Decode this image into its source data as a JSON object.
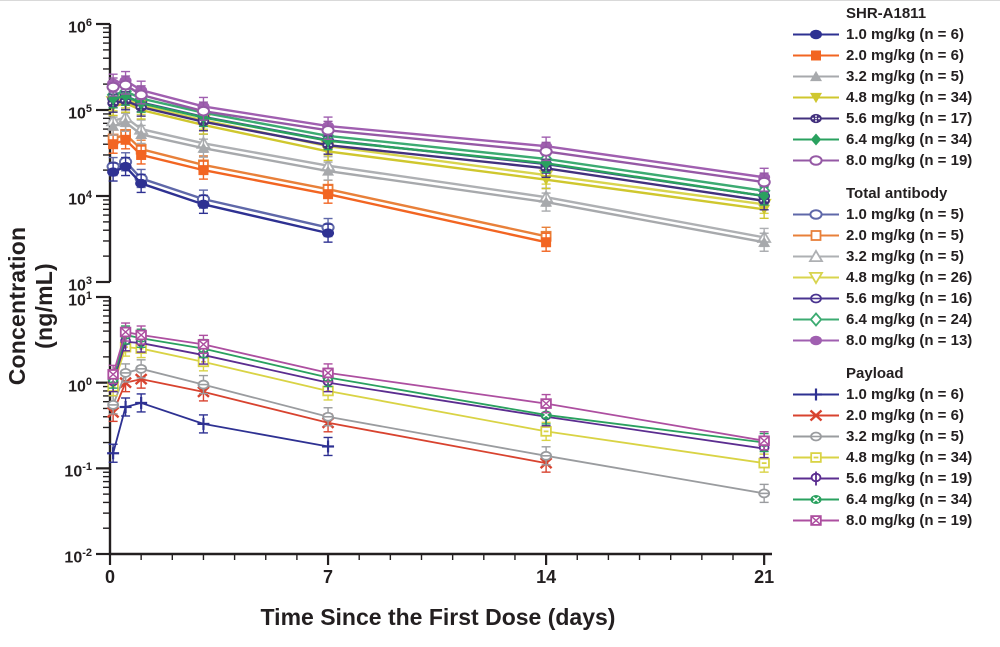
{
  "figure": {
    "y_axis_label": "Concentration (ng/mL)",
    "x_axis_label": "Time Since the First Dose (days)",
    "axis_color": "#231f20",
    "background": "#ffffff"
  },
  "legend": {
    "groups": [
      {
        "title": "SHR-A1811",
        "items": [
          {
            "label": "1.0 mg/kg (n = 6)",
            "color": "#2e3192",
            "marker": "ellipse-filled"
          },
          {
            "label": "2.0 mg/kg (n = 6)",
            "color": "#f26522",
            "marker": "square-filled"
          },
          {
            "label": "3.2 mg/kg (n = 5)",
            "color": "#a7a9ac",
            "marker": "tri-up-filled"
          },
          {
            "label": "4.8 mg/kg (n = 34)",
            "color": "#cfc72e",
            "marker": "tri-down-filled"
          },
          {
            "label": "5.6 mg/kg (n = 17)",
            "color": "#43317e",
            "marker": "circle-dots"
          },
          {
            "label": "6.4 mg/kg (n = 34)",
            "color": "#2aa15f",
            "marker": "diamond-filled"
          },
          {
            "label": "8.0 mg/kg (n = 19)",
            "color": "#9559a5",
            "marker": "ellipse-open"
          }
        ]
      },
      {
        "title": "Total antibody",
        "items": [
          {
            "label": "1.0 mg/kg (n = 5)",
            "color": "#5f68a9",
            "marker": "ellipse-open"
          },
          {
            "label": "2.0 mg/kg (n = 5)",
            "color": "#e8803a",
            "marker": "square-open"
          },
          {
            "label": "3.2 mg/kg (n = 5)",
            "color": "#aeb0b3",
            "marker": "tri-up-open"
          },
          {
            "label": "4.8 mg/kg (n = 26)",
            "color": "#d8d44e",
            "marker": "tri-down-open"
          },
          {
            "label": "5.6 mg/kg (n = 16)",
            "color": "#4a3490",
            "marker": "circle-hbar"
          },
          {
            "label": "6.4 mg/kg (n = 24)",
            "color": "#3cab72",
            "marker": "diamond-open"
          },
          {
            "label": "8.0 mg/kg (n = 13)",
            "color": "#a05fb0",
            "marker": "ellipse-filled"
          }
        ]
      },
      {
        "title": "Payload",
        "items": [
          {
            "label": "1.0 mg/kg (n = 6)",
            "color": "#2e3192",
            "marker": "plus"
          },
          {
            "label": "2.0 mg/kg (n = 6)",
            "color": "#d8432f",
            "marker": "x-mark"
          },
          {
            "label": "3.2 mg/kg (n = 5)",
            "color": "#9a9c9f",
            "marker": "circle-hbar"
          },
          {
            "label": "4.8 mg/kg (n = 34)",
            "color": "#d9d345",
            "marker": "square-hbar"
          },
          {
            "label": "5.6 mg/kg (n = 19)",
            "color": "#5b2d90",
            "marker": "circle-vline"
          },
          {
            "label": "6.4 mg/kg (n = 34)",
            "color": "#2aa15f",
            "marker": "circle-x-filled"
          },
          {
            "label": "8.0 mg/kg (n = 19)",
            "color": "#ad4fa0",
            "marker": "square-x"
          }
        ]
      }
    ]
  },
  "chart_data": [
    {
      "type": "line",
      "panel": "top",
      "title": "",
      "xlabel": "Time Since the First Dose (days)",
      "ylabel": "Concentration (ng/mL)",
      "x_units": "days",
      "y_scale": "log10",
      "ylim": [
        1000,
        1000000
      ],
      "y_tick_exponents": [
        6,
        5,
        4,
        3
      ],
      "xlim": [
        0,
        21
      ],
      "x_ticks": [
        0,
        7,
        14,
        21
      ],
      "grid": false,
      "legend_position": "right",
      "x": [
        0.1,
        0.5,
        1,
        3,
        7,
        14,
        21
      ],
      "series": [
        {
          "name": "Total antibody 1.0 mg/kg (n = 5)",
          "group": "Total antibody",
          "color": "#5f68a9",
          "marker": "ellipse-open",
          "values": [
            22000,
            25000,
            16000,
            9200,
            4300,
            null,
            null
          ]
        },
        {
          "name": "Total antibody 2.0 mg/kg (n = 5)",
          "group": "Total antibody",
          "color": "#e8803a",
          "marker": "square-open",
          "values": [
            46000,
            52000,
            35000,
            23000,
            12000,
            3400,
            null
          ]
        },
        {
          "name": "Total antibody 3.2 mg/kg (n = 5)",
          "group": "Total antibody",
          "color": "#aeb0b3",
          "marker": "tri-up-open",
          "values": [
            75000,
            82000,
            60000,
            41000,
            22500,
            9700,
            3300
          ]
        },
        {
          "name": "Total antibody 4.8 mg/kg (n = 26)",
          "group": "Total antibody",
          "color": "#d8d44e",
          "marker": "tri-down-open",
          "values": [
            125000,
            135000,
            113000,
            76000,
            38000,
            17500,
            8000
          ]
        },
        {
          "name": "Total antibody 5.6 mg/kg (n = 16)",
          "group": "Total antibody",
          "color": "#4a3490",
          "marker": "circle-hbar",
          "values": [
            135000,
            145000,
            122000,
            83000,
            44500,
            23500,
            10000
          ]
        },
        {
          "name": "Total antibody 6.4 mg/kg (n = 24)",
          "group": "Total antibody",
          "color": "#3cab72",
          "marker": "diamond-open",
          "values": [
            150000,
            165000,
            136000,
            93000,
            50000,
            27000,
            11500
          ]
        },
        {
          "name": "Total antibody 8.0 mg/kg (n = 13)",
          "group": "Total antibody",
          "color": "#a05fb0",
          "marker": "ellipse-filled",
          "values": [
            205000,
            220000,
            170000,
            110000,
            65000,
            38000,
            16500
          ]
        },
        {
          "name": "SHR-A1811 1.0 mg/kg (n = 6)",
          "group": "SHR-A1811",
          "color": "#2e3192",
          "marker": "ellipse-filled",
          "values": [
            19000,
            22000,
            14000,
            8000,
            3700,
            null,
            null
          ]
        },
        {
          "name": "SHR-A1811 2.0 mg/kg (n = 6)",
          "group": "SHR-A1811",
          "color": "#f26522",
          "marker": "square-filled",
          "values": [
            40000,
            45000,
            30000,
            20000,
            10500,
            2900,
            null
          ]
        },
        {
          "name": "SHR-A1811 3.2 mg/kg (n = 5)",
          "group": "SHR-A1811",
          "color": "#a7a9ac",
          "marker": "tri-up-filled",
          "values": [
            65000,
            72000,
            52000,
            36000,
            19500,
            8500,
            2900
          ]
        },
        {
          "name": "SHR-A1811 4.8 mg/kg (n = 34)",
          "group": "SHR-A1811",
          "color": "#cfc72e",
          "marker": "tri-down-filled",
          "values": [
            110000,
            120000,
            100000,
            67000,
            33000,
            15500,
            7000
          ]
        },
        {
          "name": "SHR-A1811 5.6 mg/kg (n = 17)",
          "group": "SHR-A1811",
          "color": "#43317e",
          "marker": "circle-dots",
          "values": [
            120000,
            128000,
            108000,
            73000,
            39000,
            21000,
            8800
          ]
        },
        {
          "name": "SHR-A1811 6.4 mg/kg (n = 34)",
          "group": "SHR-A1811",
          "color": "#2aa15f",
          "marker": "diamond-filled",
          "values": [
            135000,
            145000,
            120000,
            82000,
            44000,
            24000,
            10000
          ]
        },
        {
          "name": "SHR-A1811 8.0 mg/kg (n = 19)",
          "group": "SHR-A1811",
          "color": "#9559a5",
          "marker": "ellipse-open",
          "values": [
            185000,
            195000,
            150000,
            97000,
            58000,
            33000,
            14500
          ]
        }
      ]
    },
    {
      "type": "line",
      "panel": "bottom",
      "title": "",
      "xlabel": "Time Since the First Dose (days)",
      "ylabel": "Concentration (ng/mL)",
      "x_units": "days",
      "y_scale": "log10",
      "ylim": [
        0.01,
        10
      ],
      "y_tick_exponents": [
        1,
        0,
        -1,
        -2
      ],
      "xlim": [
        0,
        21
      ],
      "x_ticks": [
        0,
        7,
        14,
        21
      ],
      "grid": false,
      "legend_position": "right",
      "x": [
        0.1,
        0.5,
        1,
        3,
        7,
        14,
        21
      ],
      "series": [
        {
          "name": "Payload 1.0 mg/kg (n = 6)",
          "group": "Payload",
          "color": "#2e3192",
          "marker": "plus",
          "values": [
            0.15,
            0.52,
            0.58,
            0.33,
            0.18,
            null,
            null
          ]
        },
        {
          "name": "Payload 2.0 mg/kg (n = 6)",
          "group": "Payload",
          "color": "#d8432f",
          "marker": "x-mark",
          "values": [
            0.45,
            1.0,
            1.1,
            0.78,
            0.34,
            0.115,
            null
          ]
        },
        {
          "name": "Payload 3.2 mg/kg (n = 5)",
          "group": "Payload",
          "color": "#9a9c9f",
          "marker": "circle-hbar",
          "values": [
            0.55,
            1.3,
            1.45,
            0.95,
            0.4,
            0.14,
            0.051
          ]
        },
        {
          "name": "Payload 4.8 mg/kg (n = 34)",
          "group": "Payload",
          "color": "#d9d345",
          "marker": "square-hbar",
          "values": [
            0.9,
            2.6,
            2.5,
            1.75,
            0.8,
            0.27,
            0.115
          ]
        },
        {
          "name": "Payload 5.6 mg/kg (n = 19)",
          "group": "Payload",
          "color": "#5b2d90",
          "marker": "circle-vline",
          "values": [
            1.0,
            3.0,
            2.9,
            2.1,
            1.0,
            0.4,
            0.17
          ]
        },
        {
          "name": "Payload 6.4 mg/kg (n = 34)",
          "group": "Payload",
          "color": "#2aa15f",
          "marker": "circle-x-filled",
          "values": [
            1.1,
            3.6,
            3.3,
            2.5,
            1.15,
            0.42,
            0.2
          ]
        },
        {
          "name": "Payload 8.0 mg/kg (n = 19)",
          "group": "Payload",
          "color": "#ad4fa0",
          "marker": "square-x",
          "values": [
            1.25,
            3.9,
            3.6,
            2.8,
            1.3,
            0.57,
            0.21
          ]
        }
      ]
    }
  ]
}
